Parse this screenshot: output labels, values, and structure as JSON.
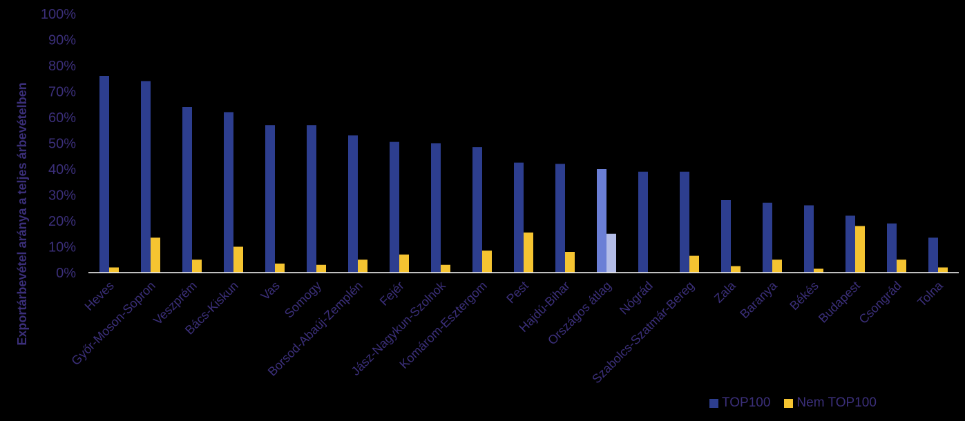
{
  "chart_data": {
    "type": "bar",
    "ylabel": "Exportárbevétel aránya a teljes árbevételben",
    "ylim": [
      0,
      100
    ],
    "yticks": [
      "0%",
      "10%",
      "20%",
      "30%",
      "40%",
      "50%",
      "60%",
      "70%",
      "80%",
      "90%",
      "100%"
    ],
    "categories": [
      "Heves",
      "Győr-Moson-Sopron",
      "Veszprém",
      "Bács-Kiskun",
      "Vas",
      "Somogy",
      "Borsod-Abaúj-Zemplén",
      "Fejér",
      "Jász-Nagykun-Szolnok",
      "Komárom-Esztergom",
      "Pest",
      "Hajdú-Bihar",
      "Országos átlag",
      "Nógrád",
      "Szabolcs-Szatmár-Bereg",
      "Zala",
      "Baranya",
      "Békés",
      "Budapest",
      "Csongrád",
      "Tolna"
    ],
    "highlight_category": "Országos átlag",
    "series": [
      {
        "name": "TOP100",
        "color": "#2d3e8f",
        "highlight_color": "#6b7fd6",
        "values": [
          76,
          74,
          64,
          62,
          57,
          57,
          53,
          50.5,
          50,
          48.5,
          42.5,
          42,
          40,
          39,
          39,
          28,
          27,
          26,
          22,
          19,
          13.5
        ]
      },
      {
        "name": "Nem TOP100",
        "color": "#f5c431",
        "highlight_color": "#b4bde8",
        "values": [
          2,
          13.5,
          5,
          10,
          3.5,
          3,
          5,
          7,
          3,
          8.5,
          15.5,
          8,
          15,
          0,
          6.5,
          2.5,
          5,
          1.5,
          18,
          5,
          2
        ]
      }
    ],
    "legend_position": "bottom-right",
    "grid": false
  }
}
